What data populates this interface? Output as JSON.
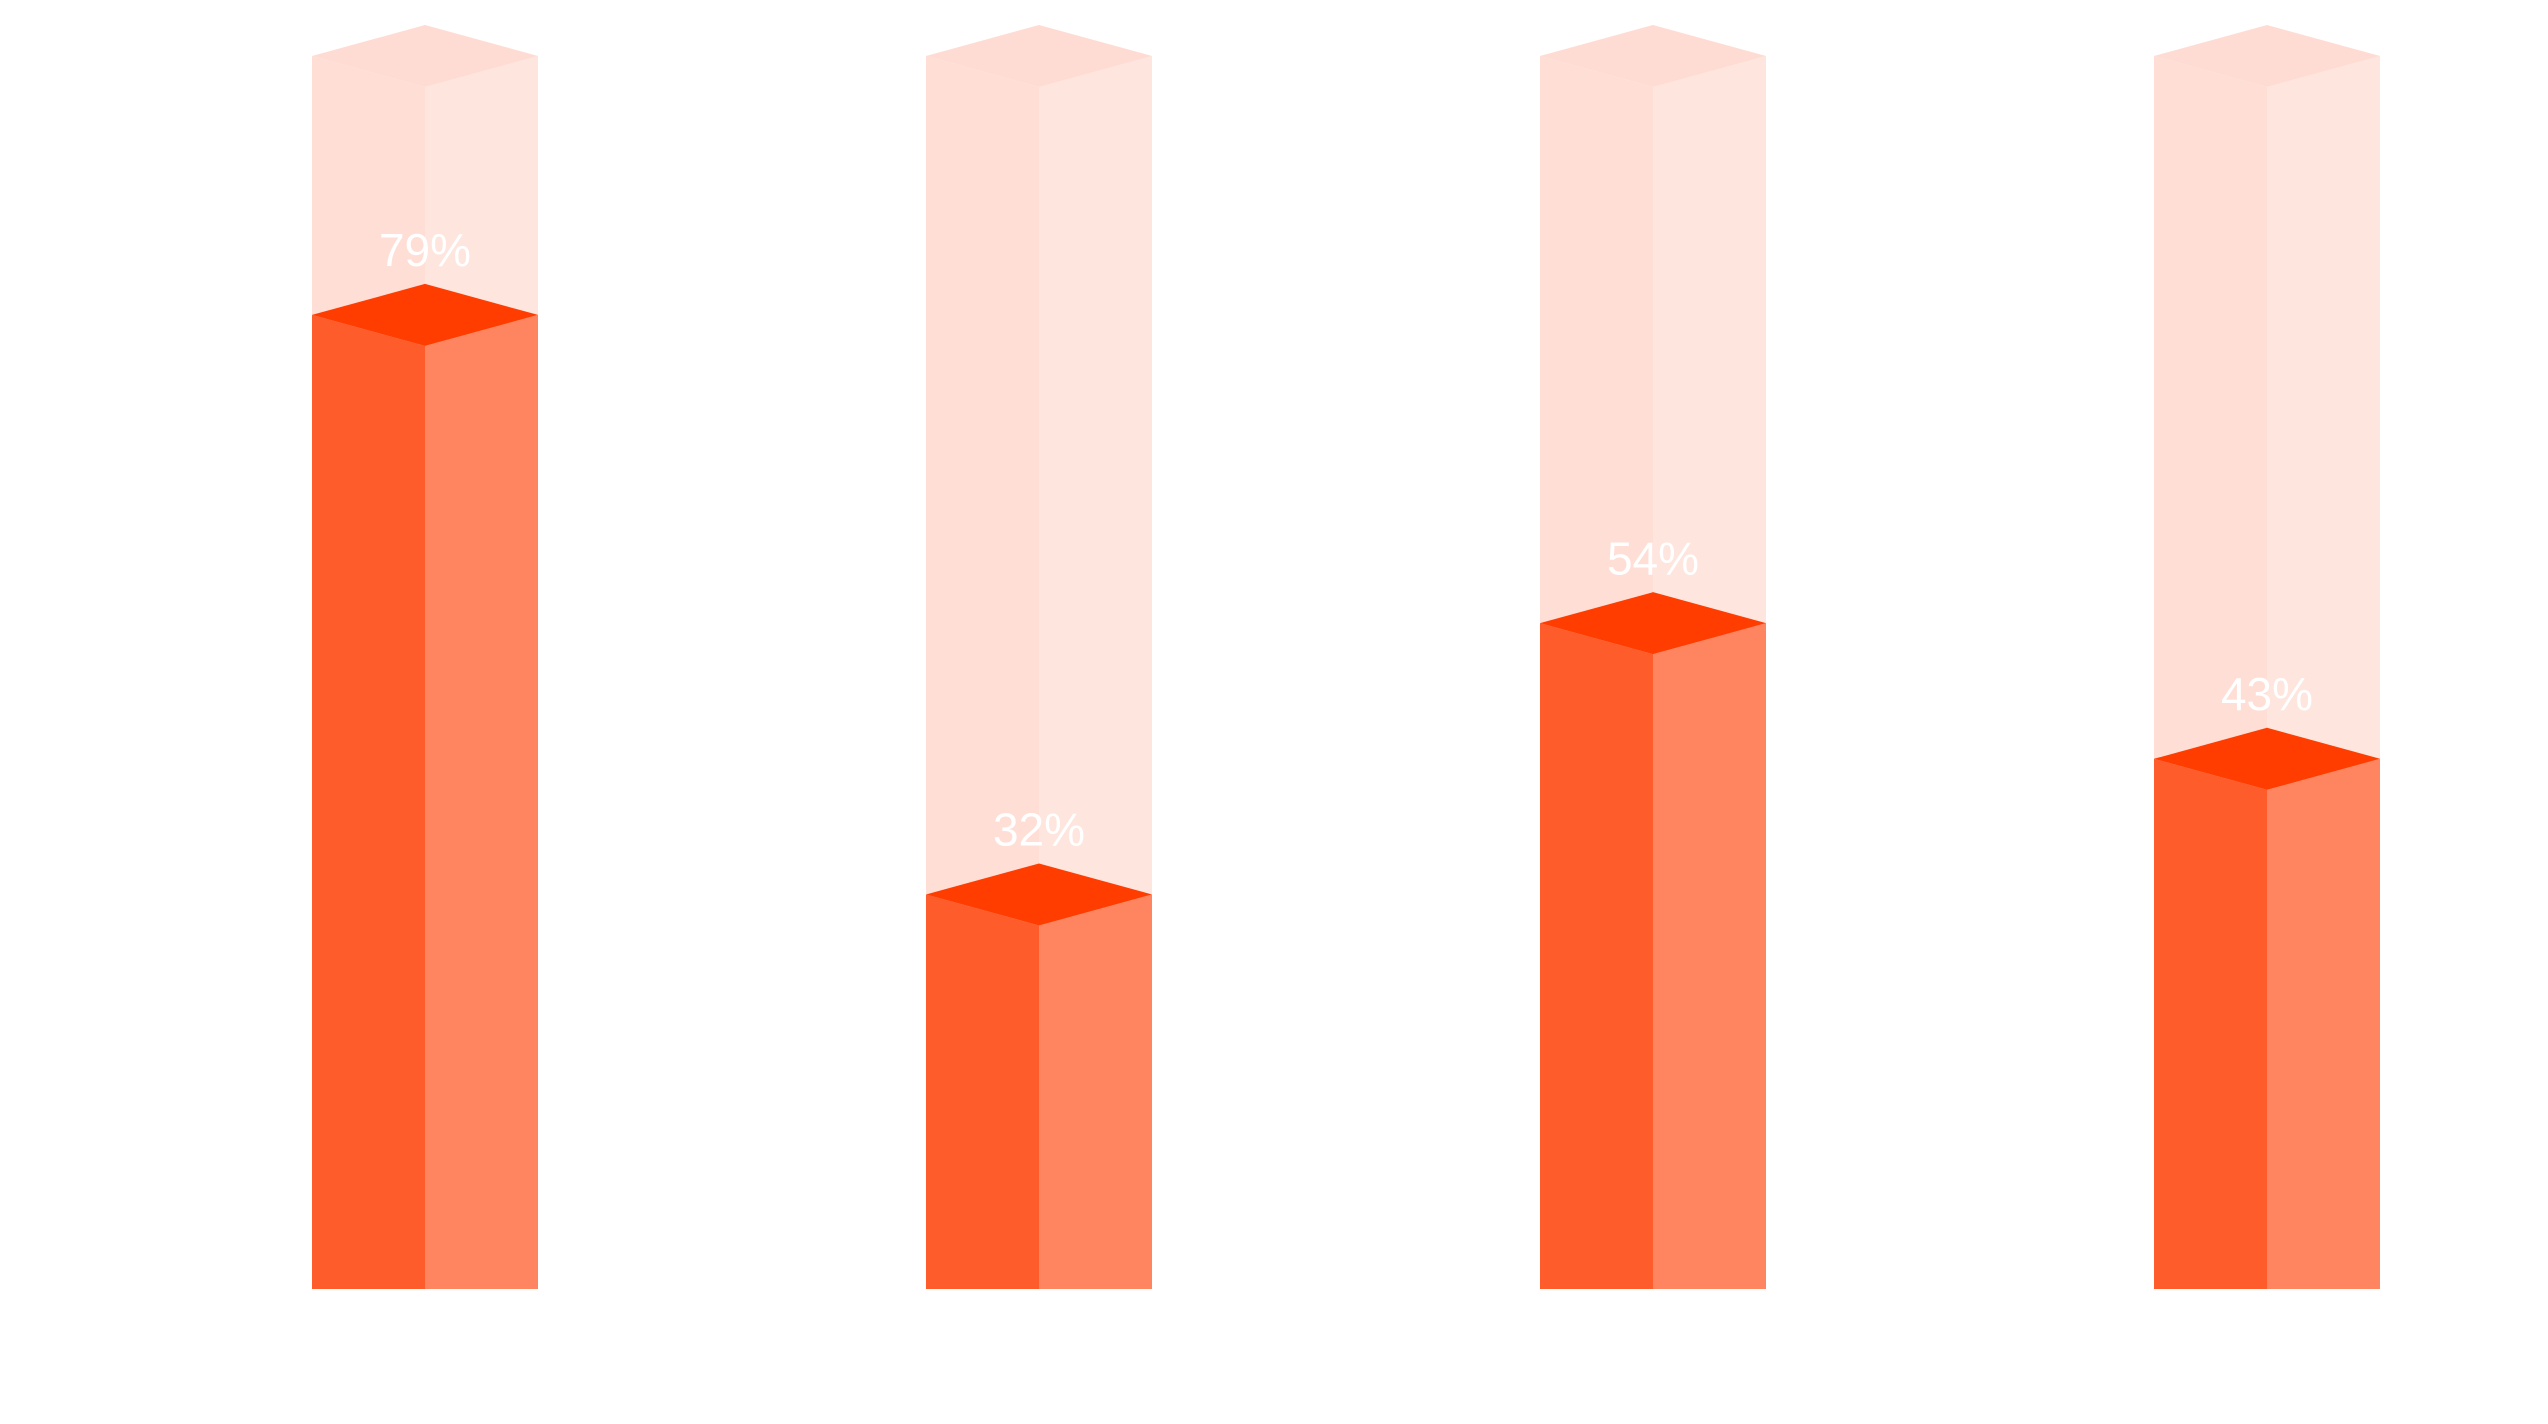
{
  "chart_data": {
    "type": "bar3d",
    "values": [
      79,
      32,
      54,
      43
    ],
    "value_labels": [
      "79%",
      "32%",
      "54%",
      "43%"
    ],
    "ylim": [
      0,
      100
    ],
    "colors": {
      "left": "#ff5c2b",
      "right": "#ff8560",
      "top": "#ff3d00"
    },
    "track_colors": {
      "left": "#ffded6",
      "right": "#fee5dd",
      "top": "#ffdcd3"
    }
  }
}
